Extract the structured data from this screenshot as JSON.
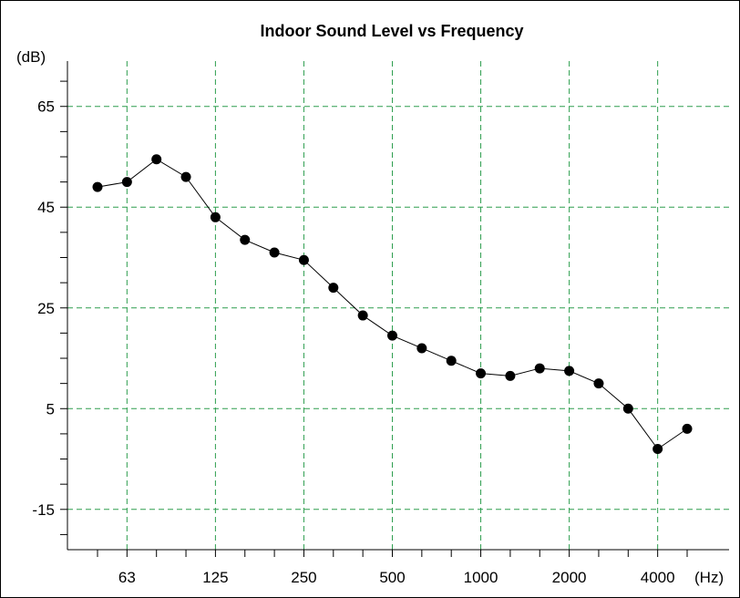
{
  "chart_data": {
    "type": "line",
    "title": "Indoor Sound Level vs Frequency",
    "y_unit_label": "(dB)",
    "x_unit_label": "(Hz)",
    "x_scale": "log2 (third-octave bands)",
    "ylim": [
      -23,
      74
    ],
    "y_ticks": [
      65,
      45,
      25,
      5,
      -15
    ],
    "y_minor_step": 5,
    "x_ticks": [
      "63",
      "125",
      "250",
      "500",
      "1000",
      "2000",
      "4000"
    ],
    "grid": true,
    "colors": {
      "grid": "#2e9e4f",
      "line": "#000000",
      "marker": "#000000"
    },
    "series": [
      {
        "x": [
          50,
          63,
          80,
          100,
          125,
          160,
          200,
          250,
          315,
          400,
          500,
          630,
          800,
          1000,
          1250,
          1600,
          2000,
          2500,
          3150,
          4000,
          5000
        ],
        "y": [
          49,
          50,
          54.5,
          51,
          43,
          38.5,
          36,
          34.5,
          29,
          23.5,
          19.5,
          17,
          14.5,
          12,
          11.5,
          13,
          12.5,
          10,
          5,
          -3,
          1
        ]
      }
    ]
  }
}
